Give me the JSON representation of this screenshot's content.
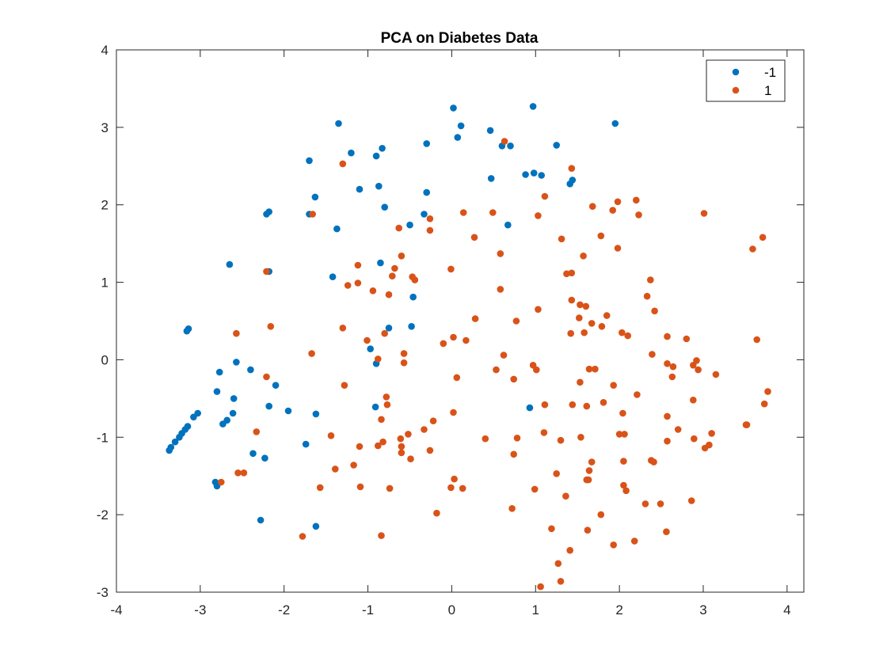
{
  "chart_data": {
    "type": "scatter",
    "title": "PCA on Diabetes Data",
    "xlabel": "",
    "ylabel": "",
    "xlim": [
      -4,
      4.2
    ],
    "ylim": [
      -3,
      4
    ],
    "xticks": [
      -4,
      -3,
      -2,
      -1,
      0,
      1,
      2,
      3,
      4
    ],
    "yticks": [
      -3,
      -2,
      -1,
      0,
      1,
      2,
      3,
      4
    ],
    "xtick_labels": [
      "-4",
      "-3",
      "-2",
      "-1",
      "0",
      "1",
      "2",
      "3",
      "4"
    ],
    "ytick_labels": [
      "-3",
      "-2",
      "-1",
      "0",
      "1",
      "2",
      "3",
      "4"
    ],
    "grid": false,
    "legend_position": "top-right",
    "series": [
      {
        "name": "-1",
        "color": "#0072BD",
        "points": [
          [
            -1.35,
            3.05
          ],
          [
            -1.2,
            2.67
          ],
          [
            -0.83,
            2.73
          ],
          [
            -0.9,
            2.63
          ],
          [
            -0.87,
            2.24
          ],
          [
            -1.7,
            2.57
          ],
          [
            -1.1,
            2.2
          ],
          [
            -1.63,
            2.1
          ],
          [
            -0.8,
            1.97
          ],
          [
            -2.18,
            1.91
          ],
          [
            -2.21,
            1.88
          ],
          [
            -1.7,
            1.88
          ],
          [
            -1.37,
            1.69
          ],
          [
            -0.5,
            1.74
          ],
          [
            -0.33,
            1.88
          ],
          [
            -0.3,
            2.16
          ],
          [
            -0.3,
            2.79
          ],
          [
            0.02,
            3.25
          ],
          [
            0.11,
            3.02
          ],
          [
            0.07,
            2.87
          ],
          [
            0.46,
            2.96
          ],
          [
            0.6,
            2.76
          ],
          [
            0.7,
            2.76
          ],
          [
            0.47,
            2.34
          ],
          [
            0.97,
            3.27
          ],
          [
            1.25,
            2.77
          ],
          [
            1.95,
            3.05
          ],
          [
            0.88,
            2.39
          ],
          [
            0.98,
            2.41
          ],
          [
            1.07,
            2.38
          ],
          [
            1.44,
            2.32
          ],
          [
            1.41,
            2.27
          ],
          [
            0.67,
            1.74
          ],
          [
            -2.65,
            1.23
          ],
          [
            -2.18,
            1.14
          ],
          [
            -0.85,
            1.25
          ],
          [
            -1.42,
            1.07
          ],
          [
            -0.46,
            0.81
          ],
          [
            -0.75,
            0.41
          ],
          [
            -0.48,
            0.43
          ],
          [
            -3.14,
            0.4
          ],
          [
            -3.16,
            0.37
          ],
          [
            -0.97,
            0.14
          ],
          [
            -0.9,
            -0.05
          ],
          [
            -2.57,
            -0.03
          ],
          [
            -2.4,
            -0.13
          ],
          [
            -2.77,
            -0.16
          ],
          [
            -2.1,
            -0.33
          ],
          [
            -2.6,
            -0.5
          ],
          [
            -2.8,
            -0.41
          ],
          [
            -3.03,
            -0.69
          ],
          [
            -3.08,
            -0.74
          ],
          [
            -2.18,
            -0.6
          ],
          [
            -1.95,
            -0.66
          ],
          [
            -1.62,
            -0.7
          ],
          [
            -2.61,
            -0.69
          ],
          [
            -2.68,
            -0.78
          ],
          [
            -2.73,
            -0.83
          ],
          [
            -3.15,
            -0.86
          ],
          [
            -3.18,
            -0.9
          ],
          [
            -3.22,
            -0.95
          ],
          [
            -3.25,
            -1.0
          ],
          [
            -3.3,
            -1.06
          ],
          [
            -3.35,
            -1.13
          ],
          [
            -3.37,
            -1.17
          ],
          [
            -1.74,
            -1.09
          ],
          [
            -2.37,
            -1.21
          ],
          [
            -2.23,
            -1.27
          ],
          [
            -2.82,
            -1.58
          ],
          [
            -2.8,
            -1.63
          ],
          [
            -2.28,
            -2.07
          ],
          [
            -1.62,
            -2.15
          ],
          [
            -0.91,
            -0.61
          ],
          [
            0.93,
            -0.62
          ]
        ]
      },
      {
        "name": "1",
        "color": "#D95319",
        "points": [
          [
            -1.3,
            2.53
          ],
          [
            0.63,
            2.82
          ],
          [
            1.43,
            2.47
          ],
          [
            1.11,
            2.11
          ],
          [
            1.68,
            1.98
          ],
          [
            1.98,
            2.04
          ],
          [
            2.2,
            2.06
          ],
          [
            1.92,
            1.93
          ],
          [
            2.23,
            1.87
          ],
          [
            3.01,
            1.89
          ],
          [
            0.49,
            1.9
          ],
          [
            0.14,
            1.9
          ],
          [
            1.03,
            1.86
          ],
          [
            -0.26,
            1.82
          ],
          [
            -0.26,
            1.67
          ],
          [
            -0.63,
            1.7
          ],
          [
            -1.66,
            1.88
          ],
          [
            0.27,
            1.58
          ],
          [
            1.31,
            1.56
          ],
          [
            1.78,
            1.6
          ],
          [
            1.98,
            1.44
          ],
          [
            3.71,
            1.58
          ],
          [
            3.59,
            1.43
          ],
          [
            0.58,
            1.37
          ],
          [
            1.57,
            1.34
          ],
          [
            -0.6,
            1.34
          ],
          [
            -1.12,
            1.22
          ],
          [
            -0.68,
            1.18
          ],
          [
            -0.01,
            1.17
          ],
          [
            -0.71,
            1.08
          ],
          [
            -0.47,
            1.07
          ],
          [
            -0.44,
            1.03
          ],
          [
            -1.12,
            0.99
          ],
          [
            -1.24,
            0.96
          ],
          [
            -0.94,
            0.89
          ],
          [
            -0.75,
            0.84
          ],
          [
            0.58,
            0.91
          ],
          [
            1.37,
            1.11
          ],
          [
            1.43,
            1.12
          ],
          [
            2.37,
            1.03
          ],
          [
            -2.21,
            1.14
          ],
          [
            2.33,
            0.82
          ],
          [
            1.43,
            0.77
          ],
          [
            1.53,
            0.71
          ],
          [
            1.6,
            0.69
          ],
          [
            1.03,
            0.65
          ],
          [
            1.67,
            0.47
          ],
          [
            1.52,
            0.54
          ],
          [
            1.85,
            0.57
          ],
          [
            2.42,
            0.63
          ],
          [
            1.79,
            0.43
          ],
          [
            0.77,
            0.5
          ],
          [
            0.28,
            0.53
          ],
          [
            -1.3,
            0.41
          ],
          [
            -2.57,
            0.34
          ],
          [
            -2.16,
            0.43
          ],
          [
            -0.8,
            0.34
          ],
          [
            1.42,
            0.34
          ],
          [
            1.58,
            0.35
          ],
          [
            2.03,
            0.35
          ],
          [
            2.1,
            0.31
          ],
          [
            2.57,
            0.3
          ],
          [
            2.8,
            0.27
          ],
          [
            3.64,
            0.26
          ],
          [
            0.02,
            0.29
          ],
          [
            0.17,
            0.25
          ],
          [
            -0.1,
            0.21
          ],
          [
            -1.01,
            0.25
          ],
          [
            -0.88,
            0.01
          ],
          [
            -0.57,
            0.08
          ],
          [
            -0.57,
            -0.04
          ],
          [
            -1.67,
            0.08
          ],
          [
            0.62,
            0.06
          ],
          [
            2.39,
            0.07
          ],
          [
            2.92,
            -0.01
          ],
          [
            2.57,
            -0.05
          ],
          [
            2.64,
            -0.09
          ],
          [
            2.88,
            -0.07
          ],
          [
            2.94,
            -0.13
          ],
          [
            3.15,
            -0.19
          ],
          [
            2.63,
            -0.22
          ],
          [
            1.64,
            -0.12
          ],
          [
            1.71,
            -0.12
          ],
          [
            0.97,
            -0.07
          ],
          [
            1.01,
            -0.13
          ],
          [
            0.53,
            -0.13
          ],
          [
            0.06,
            -0.23
          ],
          [
            -1.28,
            -0.33
          ],
          [
            -2.21,
            -0.22
          ],
          [
            0.74,
            -0.25
          ],
          [
            1.53,
            -0.29
          ],
          [
            2.21,
            -0.45
          ],
          [
            3.77,
            -0.41
          ],
          [
            1.93,
            -0.33
          ],
          [
            -0.78,
            -0.48
          ],
          [
            -0.77,
            -0.58
          ],
          [
            2.88,
            -0.52
          ],
          [
            3.73,
            -0.57
          ],
          [
            1.44,
            -0.58
          ],
          [
            1.61,
            -0.6
          ],
          [
            1.81,
            -0.55
          ],
          [
            2.04,
            -0.69
          ],
          [
            2.57,
            -0.73
          ],
          [
            1.11,
            -0.58
          ],
          [
            0.02,
            -0.68
          ],
          [
            -0.22,
            -0.79
          ],
          [
            -0.84,
            -0.77
          ],
          [
            -2.33,
            -0.93
          ],
          [
            -1.44,
            -0.98
          ],
          [
            -0.33,
            -0.9
          ],
          [
            -0.52,
            -0.96
          ],
          [
            -0.61,
            -1.02
          ],
          [
            -0.82,
            -1.06
          ],
          [
            -0.88,
            -1.11
          ],
          [
            -1.1,
            -1.12
          ],
          [
            -0.6,
            -1.12
          ],
          [
            -0.6,
            -1.2
          ],
          [
            -0.26,
            -1.17
          ],
          [
            -0.49,
            -1.28
          ],
          [
            -1.17,
            -1.36
          ],
          [
            -1.39,
            -1.41
          ],
          [
            0.4,
            -1.02
          ],
          [
            0.78,
            -1.01
          ],
          [
            1.1,
            -0.94
          ],
          [
            1.3,
            -1.04
          ],
          [
            1.54,
            -1.0
          ],
          [
            2.0,
            -0.96
          ],
          [
            2.06,
            -0.96
          ],
          [
            2.7,
            -0.9
          ],
          [
            2.89,
            -1.02
          ],
          [
            3.1,
            -0.95
          ],
          [
            3.07,
            -1.1
          ],
          [
            3.02,
            -1.14
          ],
          [
            3.51,
            -0.84
          ],
          [
            3.52,
            -0.84
          ],
          [
            2.57,
            -1.05
          ],
          [
            0.74,
            -1.22
          ],
          [
            1.67,
            -1.32
          ],
          [
            1.64,
            -1.43
          ],
          [
            2.05,
            -1.31
          ],
          [
            2.38,
            -1.3
          ],
          [
            2.41,
            -1.32
          ],
          [
            1.25,
            -1.47
          ],
          [
            1.63,
            -1.55
          ],
          [
            1.61,
            -1.55
          ],
          [
            1.78,
            -2.0
          ],
          [
            2.05,
            -1.62
          ],
          [
            2.08,
            -1.69
          ],
          [
            2.31,
            -1.86
          ],
          [
            2.49,
            -1.86
          ],
          [
            2.86,
            -1.82
          ],
          [
            2.56,
            -2.22
          ],
          [
            2.18,
            -2.34
          ],
          [
            1.93,
            -2.39
          ],
          [
            1.62,
            -2.2
          ],
          [
            1.19,
            -2.18
          ],
          [
            1.36,
            -1.76
          ],
          [
            0.99,
            -1.67
          ],
          [
            0.13,
            -1.66
          ],
          [
            0.03,
            -1.54
          ],
          [
            -0.01,
            -1.65
          ],
          [
            -0.74,
            -1.66
          ],
          [
            -1.09,
            -1.64
          ],
          [
            -1.57,
            -1.65
          ],
          [
            -2.48,
            -1.46
          ],
          [
            -2.55,
            -1.46
          ],
          [
            -2.75,
            -1.58
          ],
          [
            -0.18,
            -1.98
          ],
          [
            -1.78,
            -2.28
          ],
          [
            -0.84,
            -2.27
          ],
          [
            0.72,
            -1.92
          ],
          [
            1.41,
            -2.46
          ],
          [
            1.27,
            -2.63
          ],
          [
            1.3,
            -2.86
          ],
          [
            1.06,
            -2.93
          ]
        ]
      }
    ]
  }
}
